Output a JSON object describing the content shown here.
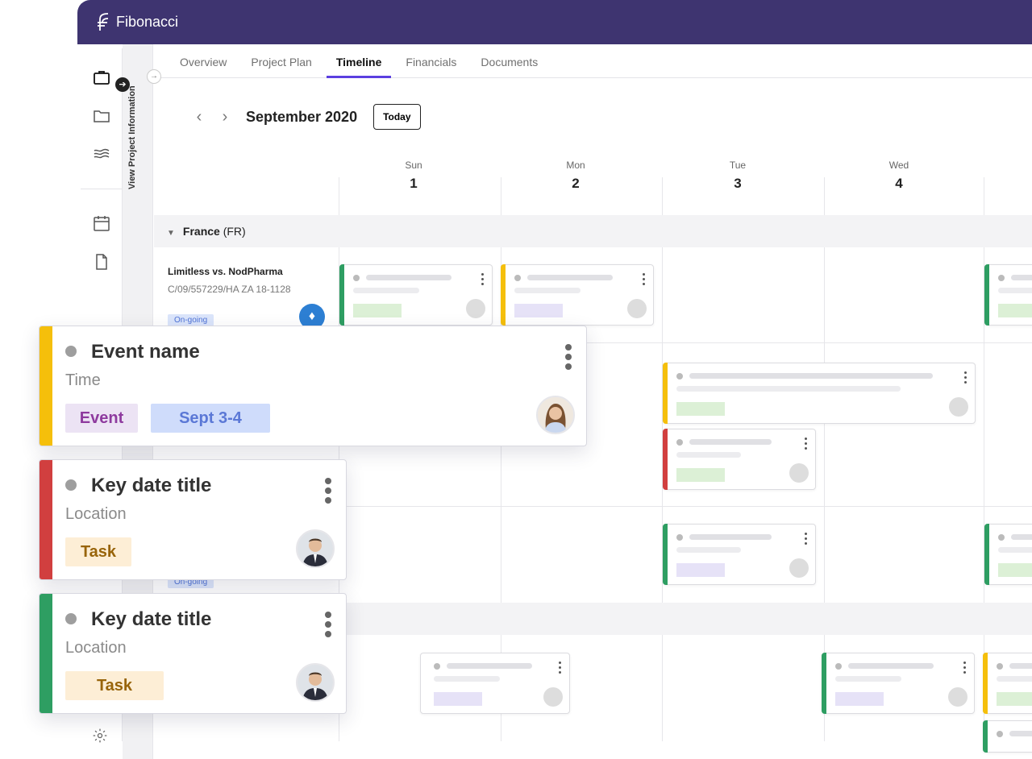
{
  "app": {
    "brand": "Fibonacci",
    "accent": "#5b3fe0",
    "topbar_color": "#3e3470"
  },
  "side_panel": {
    "label": "View Project Information"
  },
  "rail_icons": [
    "briefcase-icon",
    "folder-icon",
    "layers-icon",
    "calendar-icon",
    "document-icon",
    "gear-icon"
  ],
  "tabs": [
    {
      "label": "Overview",
      "active": false
    },
    {
      "label": "Project Plan",
      "active": false
    },
    {
      "label": "Timeline",
      "active": true
    },
    {
      "label": "Financials",
      "active": false
    },
    {
      "label": "Documents",
      "active": false
    }
  ],
  "calendar": {
    "month": "September 2020",
    "today_label": "Today",
    "days": [
      {
        "name": "Sun",
        "num": "1"
      },
      {
        "name": "Mon",
        "num": "2"
      },
      {
        "name": "Tue",
        "num": "3"
      },
      {
        "name": "Wed",
        "num": "4"
      }
    ]
  },
  "group": {
    "name": "France",
    "code": "(FR)"
  },
  "matter": {
    "title": "Limitless vs. NodPharma",
    "ref": "C/09/557229/HA ZA 18-1128",
    "status": "On-going",
    "status2": "On-going"
  },
  "popups": {
    "event": {
      "title": "Event name",
      "subtitle": "Time",
      "type": "Event",
      "dates": "Sept 3-4",
      "stripe": "#f5bf0b"
    },
    "key1": {
      "title": "Key date title",
      "subtitle": "Location",
      "type": "Task",
      "stripe": "#d13f3f"
    },
    "key2": {
      "title": "Key date title",
      "subtitle": "Location",
      "type": "Task",
      "stripe": "#2e9e62"
    }
  },
  "colors": {
    "yellow": "#f5bf0b",
    "green": "#2e9e62",
    "red": "#d13f3f",
    "tag_green": "#dcf0d6",
    "tag_purple": "#e6e2f7"
  }
}
